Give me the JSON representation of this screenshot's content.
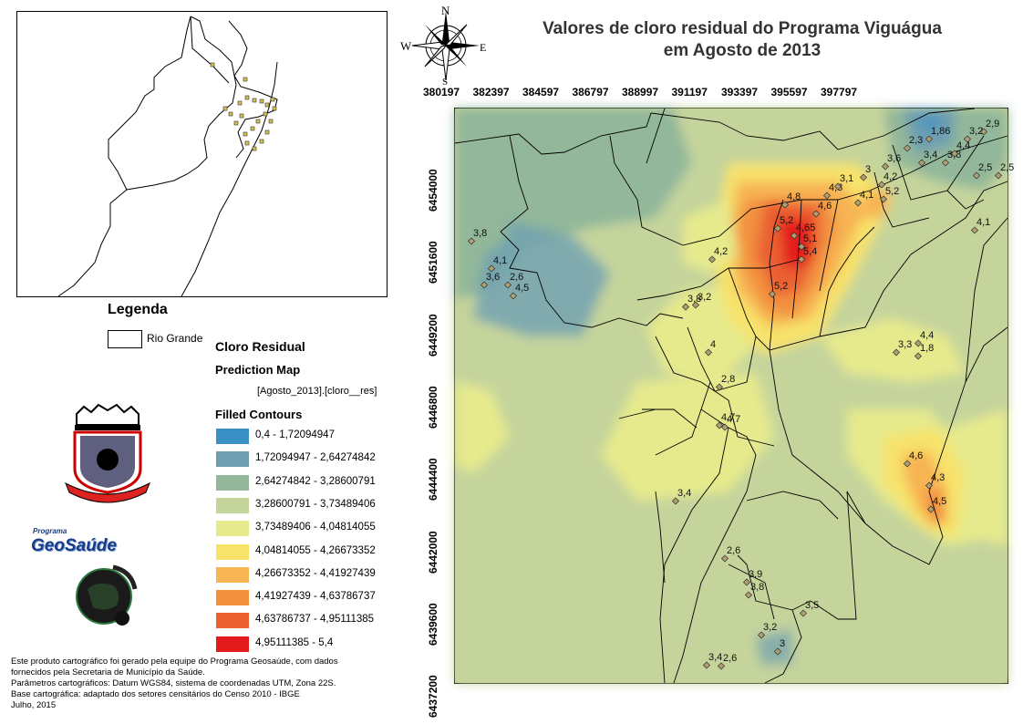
{
  "title": {
    "line1": "Valores de cloro residual do Programa Viguágua",
    "line2": "em Agosto de 2013"
  },
  "compass": {
    "n": "N",
    "s": "S",
    "e": "E",
    "w": "W"
  },
  "legend": {
    "title": "Legenda",
    "boundary_label": "Rio Grande",
    "layer_title": "Cloro Residual",
    "layer_subtitle": "Prediction Map",
    "field": "[Agosto_2013].[cloro__res]",
    "contours_title": "Filled Contours",
    "classes": [
      {
        "label": "0,4 - 1,72094947",
        "color": "#3a8fc4"
      },
      {
        "label": "1,72094947 - 2,64274842",
        "color": "#6e9fb1"
      },
      {
        "label": "2,64274842 - 3,28600791",
        "color": "#92b79a"
      },
      {
        "label": "3,28600791 - 3,73489406",
        "color": "#c5d49b"
      },
      {
        "label": "3,73489406 - 4,04814055",
        "color": "#e6ea8c"
      },
      {
        "label": "4,04814055 - 4,26673352",
        "color": "#f7e26a"
      },
      {
        "label": "4,26673352 - 4,41927439",
        "color": "#f7b452"
      },
      {
        "label": "4,41927439 - 4,63786737",
        "color": "#f2903f"
      },
      {
        "label": "4,63786737 - 4,95111385",
        "color": "#ea6030"
      },
      {
        "label": "4,95111385 - 5,4",
        "color": "#e31a1c"
      }
    ]
  },
  "logos": {
    "program_top": "Programa",
    "program_main": "GeoSaúde"
  },
  "credits": [
    "Este produto cartográfico foi gerado pela equipe do Programa Geosaúde, com dados",
    " fornecidos pela Secretaria de Município da Saúde.",
    "Parâmetros cartográficos: Datum WGS84, sistema de coordenadas UTM, Zona 22S.",
    "Base cartográfica: adaptado dos setores censitários do Censo 2010 - IBGE",
    "Julho, 2015"
  ],
  "axes": {
    "x_ticks": [
      "380197",
      "382397",
      "384597",
      "386797",
      "388997",
      "391197",
      "393397",
      "395597",
      "397797"
    ],
    "y_ticks": [
      "6454000",
      "6451600",
      "6449200",
      "6446800",
      "6444400",
      "6442000",
      "6439600",
      "6437200"
    ]
  },
  "points": [
    {
      "label": "3,8"
    },
    {
      "label": "4,1"
    },
    {
      "label": "3,6"
    },
    {
      "label": "2,6"
    },
    {
      "label": "4,5"
    },
    {
      "label": "3,8"
    },
    {
      "label": "3,2"
    },
    {
      "label": "4,2"
    },
    {
      "label": "4"
    },
    {
      "label": "2,8"
    },
    {
      "label": "4,7"
    },
    {
      "label": "4,7"
    },
    {
      "label": "3,4"
    },
    {
      "label": "2,6"
    },
    {
      "label": "3,9"
    },
    {
      "label": "3,8"
    },
    {
      "label": "3,5"
    },
    {
      "label": "3,2"
    },
    {
      "label": "3"
    },
    {
      "label": "3,4"
    },
    {
      "label": "2,6"
    },
    {
      "label": "4,8"
    },
    {
      "label": "5,2"
    },
    {
      "label": "4,65"
    },
    {
      "label": "5,1"
    },
    {
      "label": "5,4"
    },
    {
      "label": "5,2"
    },
    {
      "label": "4,6"
    },
    {
      "label": "4,3"
    },
    {
      "label": "3,1"
    },
    {
      "label": "4,1"
    },
    {
      "label": "3"
    },
    {
      "label": "4,2"
    },
    {
      "label": "5,2"
    },
    {
      "label": "3,6"
    },
    {
      "label": "2,3"
    },
    {
      "label": "1,86"
    },
    {
      "label": "3,4"
    },
    {
      "label": "3,8"
    },
    {
      "label": "3,2"
    },
    {
      "label": "4,4"
    },
    {
      "label": "2,9"
    },
    {
      "label": "2,5"
    },
    {
      "label": "2,5"
    },
    {
      "label": "4,1"
    },
    {
      "label": "4,4"
    },
    {
      "label": "3,3"
    },
    {
      "label": "1,8"
    },
    {
      "label": "4,6"
    },
    {
      "label": "4,3"
    },
    {
      "label": "4,5"
    }
  ]
}
